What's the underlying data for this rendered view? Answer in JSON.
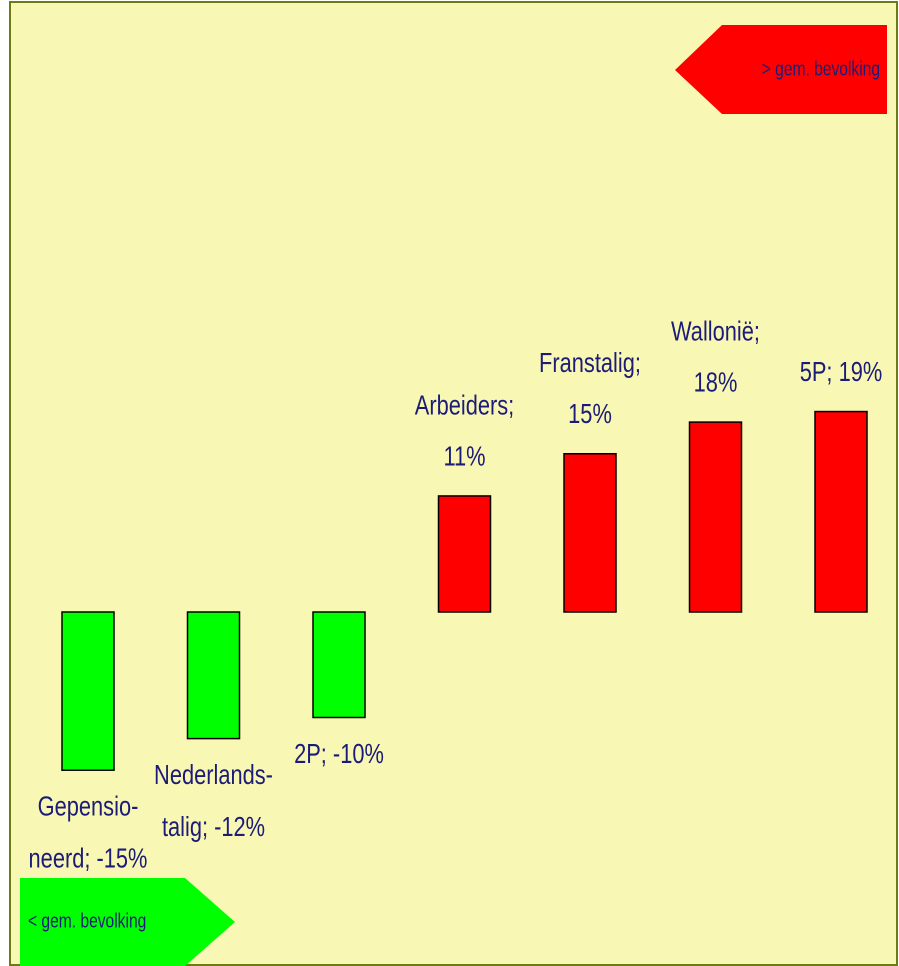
{
  "chart_data": {
    "type": "bar",
    "values": [
      -15,
      -12,
      -10,
      11,
      15,
      18,
      19
    ],
    "value_labels": [
      [
        "Gepensio-",
        "neerd; -15%"
      ],
      [
        "Nederlands-",
        "talig; -12%"
      ],
      [
        "2P; -10%"
      ],
      [
        "Arbeiders;",
        "11%"
      ],
      [
        "Franstalig;",
        "15%"
      ],
      [
        "Wallonië;",
        "18%"
      ],
      [
        "5P; 19%"
      ]
    ],
    "colors": {
      "positive": "#ff0000",
      "negative": "#00ff00"
    },
    "annotations": {
      "above": "> gem. bevolking",
      "below": "< gem. bevolking"
    }
  }
}
